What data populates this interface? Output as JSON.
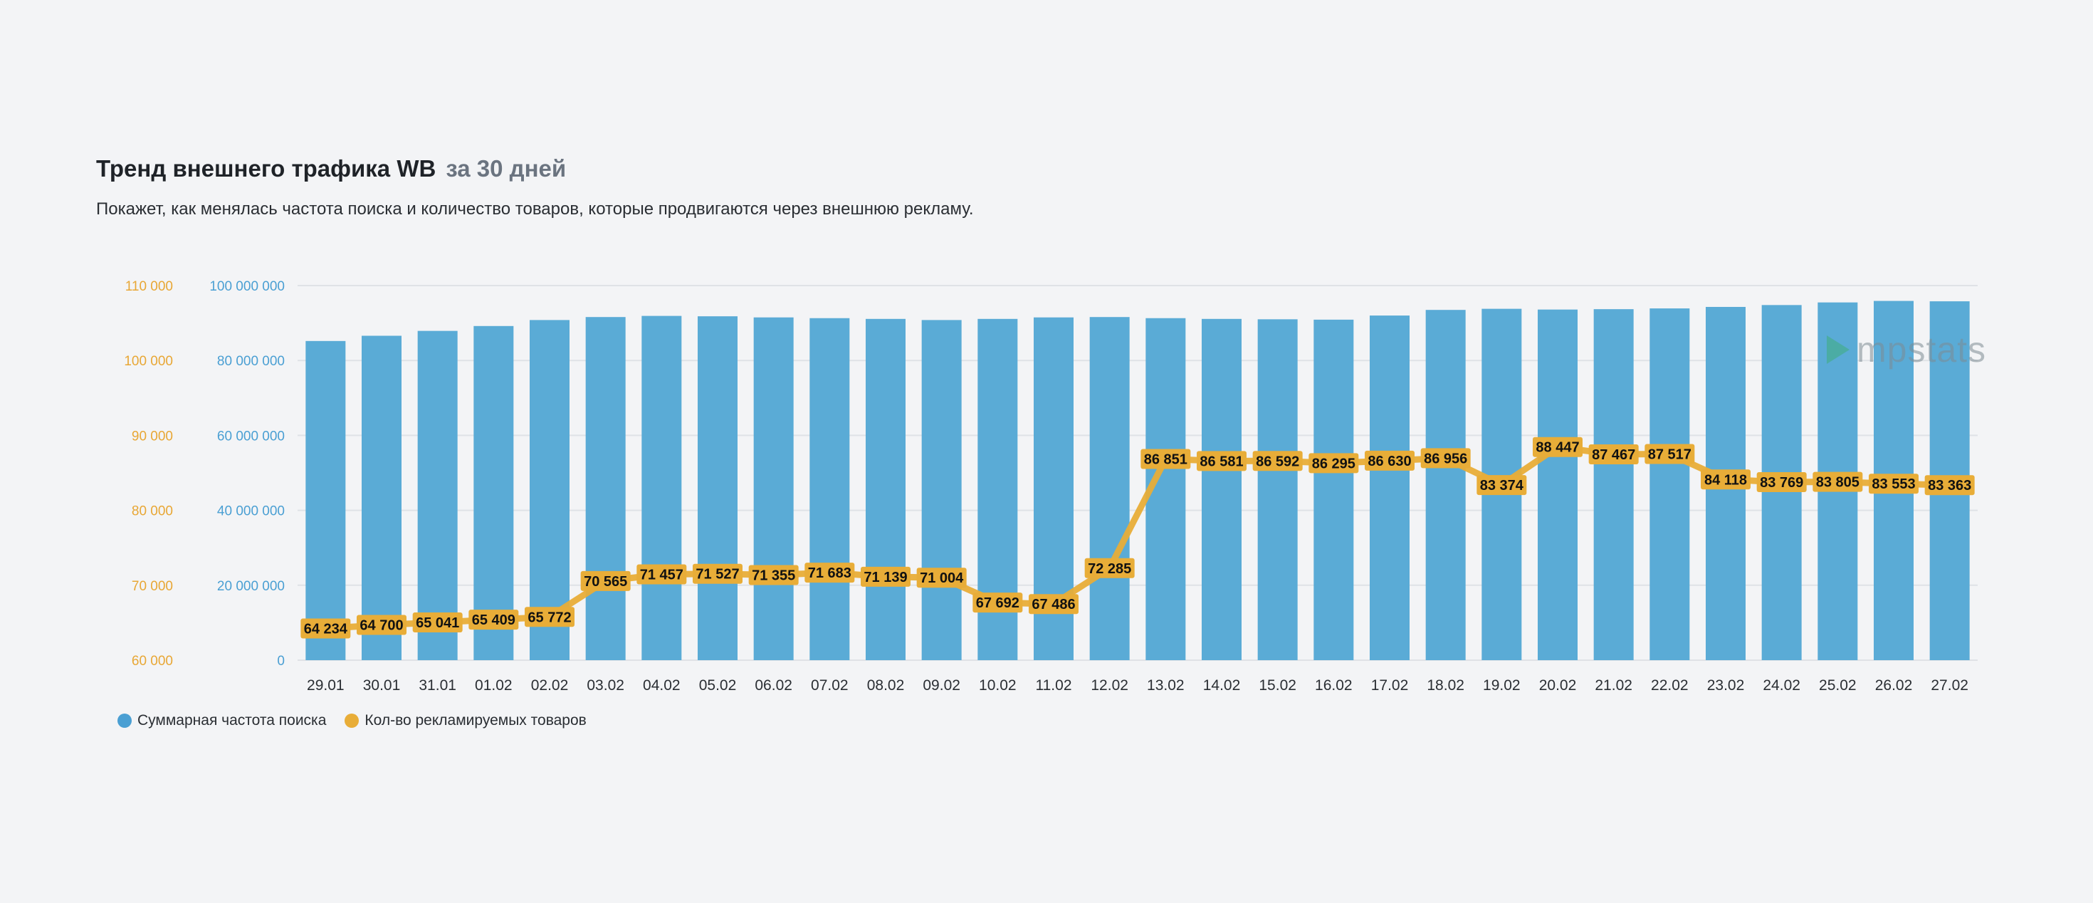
{
  "header": {
    "title": "Тренд внешнего трафика WB",
    "period": "за 30 дней",
    "subtitle": "Покажет, как менялась частота поиска и количество товаров, которые продвигаются через внешнюю рекламу."
  },
  "watermark": {
    "text": "mpstats"
  },
  "colors": {
    "bar": "#5aabd6",
    "line": "#e8ad38",
    "label_bg": "#e8ad38",
    "left_axis": "#e8a735",
    "right_axis": "#4a9fd3",
    "grid": "#dfe2e6"
  },
  "chart_data": {
    "type": "bar",
    "categories": [
      "29.01",
      "30.01",
      "31.01",
      "01.02",
      "02.02",
      "03.02",
      "04.02",
      "05.02",
      "06.02",
      "07.02",
      "08.02",
      "09.02",
      "10.02",
      "11.02",
      "12.02",
      "13.02",
      "14.02",
      "15.02",
      "16.02",
      "17.02",
      "18.02",
      "19.02",
      "20.02",
      "21.02",
      "22.02",
      "23.02",
      "24.02",
      "25.02",
      "26.02",
      "27.02"
    ],
    "series": [
      {
        "name": "Суммарная частота поиска",
        "type": "bar",
        "axis": "right",
        "values": [
          85200000,
          86600000,
          87900000,
          89200000,
          90800000,
          91600000,
          91900000,
          91800000,
          91500000,
          91300000,
          91100000,
          90800000,
          91100000,
          91500000,
          91600000,
          91300000,
          91100000,
          91000000,
          90900000,
          92000000,
          93500000,
          93800000,
          93600000,
          93700000,
          93900000,
          94300000,
          94800000,
          95500000,
          95900000,
          95800000
        ]
      },
      {
        "name": "Кол-во рекламируемых товаров",
        "type": "line",
        "axis": "left",
        "values": [
          64234,
          64700,
          65041,
          65409,
          65772,
          70565,
          71457,
          71527,
          71355,
          71683,
          71139,
          71004,
          67692,
          67486,
          72285,
          86851,
          86581,
          86592,
          86295,
          86630,
          86956,
          83374,
          88447,
          87467,
          87517,
          84118,
          83769,
          83805,
          83553,
          83363
        ],
        "labels": [
          "64 234",
          "64 700",
          "65 041",
          "65 409",
          "65 772",
          "70 565",
          "71 457",
          "71 527",
          "71 355",
          "71 683",
          "71 139",
          "71 004",
          "67 692",
          "67 486",
          "72 285",
          "86 851",
          "86 581",
          "86 592",
          "86 295",
          "86 630",
          "86 956",
          "83 374",
          "88 447",
          "87 467",
          "87 517",
          "84 118",
          "83 769",
          "83 805",
          "83 553",
          "83 363"
        ]
      }
    ],
    "left_axis": {
      "min": 60000,
      "max": 110000,
      "ticks": [
        60000,
        70000,
        80000,
        90000,
        100000,
        110000
      ],
      "tick_labels": [
        "60 000",
        "70 000",
        "80 000",
        "90 000",
        "100 000",
        "110 000"
      ]
    },
    "right_axis": {
      "min": 0,
      "max": 100000000,
      "ticks": [
        0,
        20000000,
        40000000,
        60000000,
        80000000,
        100000000
      ],
      "tick_labels": [
        "0",
        "20 000 000",
        "40 000 000",
        "60 000 000",
        "80 000 000",
        "100 000 000"
      ]
    },
    "grid": true,
    "legend_position": "bottom-left",
    "legend": [
      "Суммарная частота поиска",
      "Кол-во рекламируемых товаров"
    ]
  }
}
